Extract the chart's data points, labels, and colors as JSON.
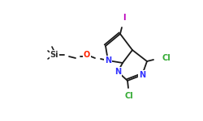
{
  "bg_color": "#ffffff",
  "bond_color": "#1a1a1a",
  "bond_width": 1.3,
  "atom_colors": {
    "N": "#3333ff",
    "O": "#ff2200",
    "Cl": "#33aa33",
    "I": "#bb00bb",
    "Si": "#333333",
    "C": "#1a1a1a"
  },
  "fs": 7.0
}
